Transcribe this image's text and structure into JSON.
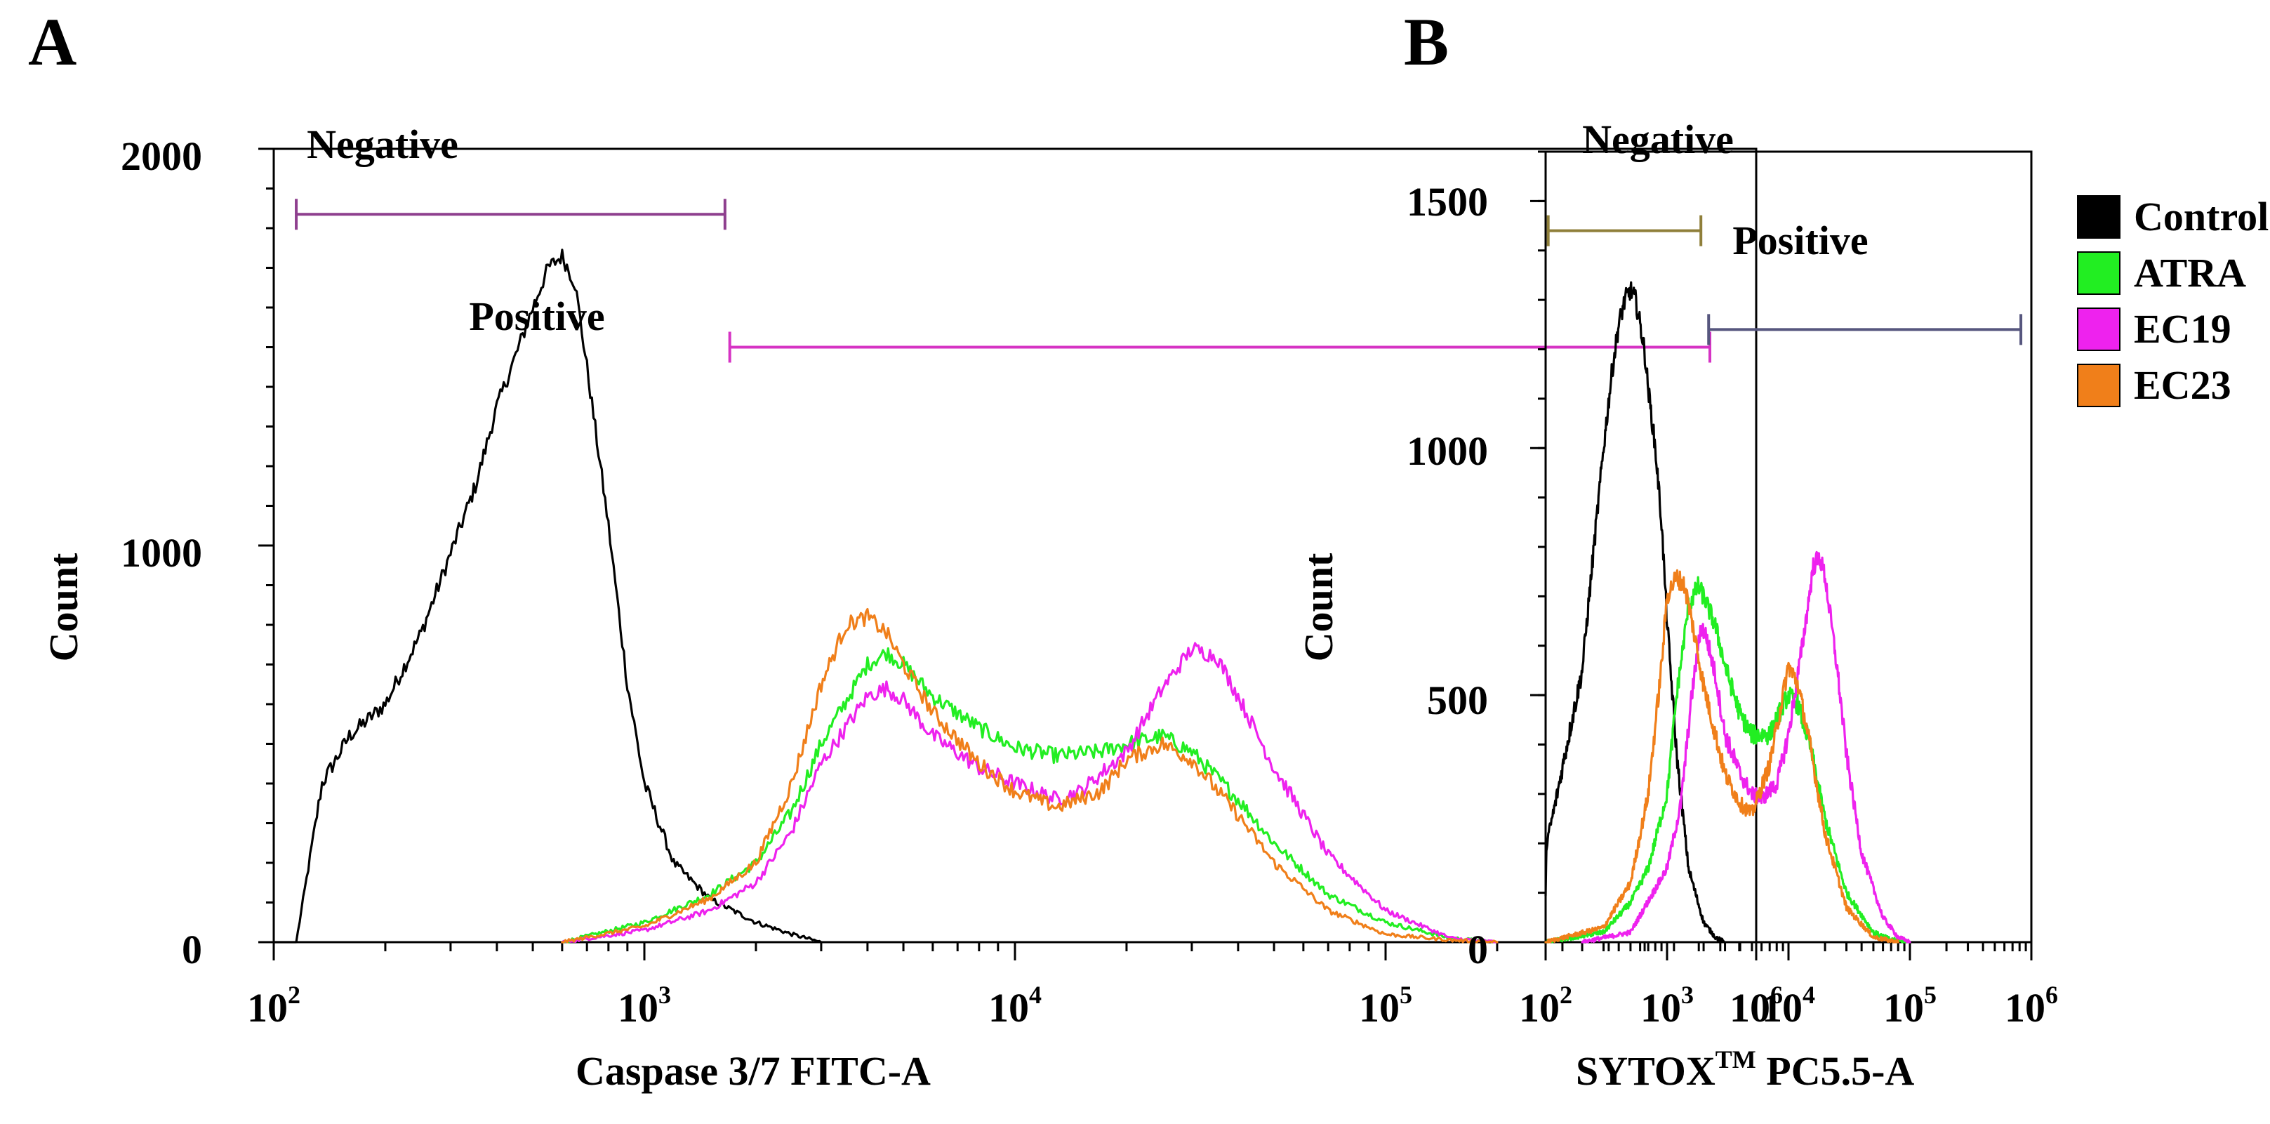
{
  "legend": [
    {
      "label": "Control",
      "color": "#000000"
    },
    {
      "label": "ATRA",
      "color": "#22ee22"
    },
    {
      "label": "EC19",
      "color": "#ee22ee"
    },
    {
      "label": "EC23",
      "color": "#f07f1a"
    }
  ],
  "chart_data": [
    {
      "panel": "A",
      "type": "line",
      "xlabel": "Caspase 3/7 FITC-A",
      "ylabel": "Count",
      "x_scale": "log",
      "xlim": [
        100,
        1000000
      ],
      "ylim": [
        0,
        2000
      ],
      "x_ticks": [
        {
          "base": "10",
          "exp": "2",
          "value": 100
        },
        {
          "base": "10",
          "exp": "3",
          "value": 1000
        },
        {
          "base": "10",
          "exp": "4",
          "value": 10000
        },
        {
          "base": "10",
          "exp": "5",
          "value": 100000
        },
        {
          "base": "10",
          "exp": "6",
          "value": 1000000
        }
      ],
      "y_ticks": [
        {
          "label": "0",
          "value": 0
        },
        {
          "label": "1000",
          "value": 1000
        },
        {
          "label": "2000",
          "value": 2000
        }
      ],
      "gates": [
        {
          "label": "Negative",
          "from": 115,
          "to": 1650,
          "y": 1835,
          "color": "#8e3f8e"
        },
        {
          "label": "Positive",
          "from": 1700,
          "to": 750000,
          "y": 1500,
          "color": "#d633c4"
        }
      ],
      "series": [
        {
          "name": "Control",
          "color": "#000000",
          "x": [
            100,
            115,
            135,
            160,
            200,
            250,
            300,
            350,
            400,
            450,
            500,
            550,
            600,
            650,
            700,
            800,
            900,
            1000,
            1200,
            1500,
            2000,
            2500,
            3000
          ],
          "y": [
            0,
            0,
            400,
            520,
            600,
            780,
            980,
            1150,
            1350,
            1480,
            1600,
            1700,
            1730,
            1660,
            1450,
            1050,
            650,
            400,
            200,
            110,
            50,
            20,
            0
          ]
        },
        {
          "name": "ATRA",
          "color": "#22ee22",
          "x": [
            600,
            1000,
            1500,
            2000,
            2500,
            3000,
            4000,
            4500,
            5000,
            6000,
            8000,
            10000,
            13000,
            17000,
            20000,
            25000,
            30000,
            40000,
            50000,
            70000,
            100000,
            150000,
            200000
          ],
          "y": [
            0,
            50,
            120,
            200,
            330,
            500,
            700,
            730,
            700,
            620,
            540,
            490,
            470,
            480,
            500,
            520,
            480,
            360,
            250,
            120,
            50,
            10,
            0
          ]
        },
        {
          "name": "EC19",
          "color": "#ee22ee",
          "x": [
            600,
            1000,
            1500,
            2000,
            2500,
            3000,
            4000,
            4500,
            5000,
            6000,
            8000,
            10000,
            13000,
            15000,
            20000,
            25000,
            30000,
            35000,
            40000,
            50000,
            70000,
            100000,
            150000,
            200000
          ],
          "y": [
            0,
            30,
            80,
            150,
            280,
            450,
            620,
            640,
            610,
            520,
            440,
            400,
            360,
            380,
            480,
            640,
            740,
            720,
            620,
            440,
            220,
            80,
            10,
            0
          ]
        },
        {
          "name": "EC23",
          "color": "#f07f1a",
          "x": [
            600,
            1000,
            1500,
            2000,
            2500,
            3000,
            3500,
            4000,
            4500,
            5000,
            6000,
            8000,
            10000,
            13000,
            17000,
            20000,
            25000,
            30000,
            40000,
            50000,
            70000,
            100000,
            150000,
            200000
          ],
          "y": [
            0,
            40,
            110,
            200,
            400,
            650,
            800,
            820,
            780,
            700,
            580,
            450,
            380,
            340,
            380,
            460,
            500,
            460,
            320,
            200,
            80,
            20,
            5,
            0
          ]
        }
      ]
    },
    {
      "panel": "B",
      "type": "line",
      "xlabel_base": "SYTOX",
      "xlabel_sup": "TM",
      "xlabel_rest": " PC5.5-A",
      "ylabel": "Count",
      "x_scale": "log",
      "xlim": [
        100,
        1000000
      ],
      "ylim": [
        0,
        1600
      ],
      "x_ticks": [
        {
          "base": "10",
          "exp": "2",
          "value": 100
        },
        {
          "base": "10",
          "exp": "3",
          "value": 1000
        },
        {
          "base": "10",
          "exp": "4",
          "value": 10000
        },
        {
          "base": "10",
          "exp": "5",
          "value": 100000
        },
        {
          "base": "10",
          "exp": "6",
          "value": 1000000
        }
      ],
      "y_ticks": [
        {
          "label": "0",
          "value": 0
        },
        {
          "label": "500",
          "value": 500
        },
        {
          "label": "1000",
          "value": 1000
        },
        {
          "label": "1500",
          "value": 1500
        }
      ],
      "gates": [
        {
          "label": "Negative",
          "from": 105,
          "to": 1900,
          "y": 1440,
          "color": "#8f7f3a"
        },
        {
          "label": "Positive",
          "from": 2200,
          "to": 820000,
          "y": 1240,
          "color": "#56567e"
        }
      ],
      "series": [
        {
          "name": "Control",
          "color": "#000000",
          "x": [
            100,
            102,
            120,
            150,
            200,
            250,
            300,
            350,
            400,
            450,
            500,
            550,
            600,
            650,
            700,
            800,
            900,
            1000,
            1200,
            1500,
            2000,
            2500,
            3000
          ],
          "y": [
            100,
            200,
            280,
            400,
            550,
            800,
            1000,
            1150,
            1250,
            1300,
            1320,
            1300,
            1250,
            1200,
            1120,
            1000,
            850,
            650,
            380,
            150,
            40,
            10,
            0
          ]
        },
        {
          "name": "ATRA",
          "color": "#22ee22",
          "x": [
            100,
            300,
            500,
            700,
            1000,
            1200,
            1500,
            1800,
            2000,
            2500,
            3000,
            4000,
            5000,
            7000,
            9000,
            10000,
            12000,
            15000,
            20000,
            30000,
            50000,
            70000,
            100000
          ],
          "y": [
            0,
            20,
            80,
            150,
            300,
            500,
            680,
            720,
            700,
            640,
            560,
            460,
            420,
            420,
            480,
            500,
            480,
            400,
            250,
            100,
            20,
            5,
            0
          ]
        },
        {
          "name": "EC19",
          "color": "#ee22ee",
          "x": [
            200,
            500,
            1000,
            1300,
            1600,
            1900,
            2100,
            2500,
            3000,
            4000,
            5000,
            6000,
            8000,
            10000,
            13000,
            16000,
            18000,
            20000,
            25000,
            30000,
            40000,
            60000,
            80000,
            100000
          ],
          "y": [
            0,
            20,
            150,
            280,
            500,
            640,
            620,
            540,
            420,
            340,
            300,
            290,
            320,
            420,
            600,
            760,
            780,
            740,
            560,
            380,
            180,
            50,
            10,
            0
          ]
        },
        {
          "name": "EC23",
          "color": "#f07f1a",
          "x": [
            100,
            300,
            500,
            700,
            900,
            1000,
            1200,
            1400,
            1600,
            2000,
            2500,
            3000,
            4000,
            5000,
            7000,
            9000,
            10000,
            12000,
            15000,
            20000,
            30000,
            50000,
            80000
          ],
          "y": [
            0,
            30,
            120,
            300,
            560,
            700,
            740,
            720,
            650,
            520,
            420,
            340,
            280,
            260,
            360,
            500,
            560,
            520,
            400,
            220,
            70,
            10,
            0
          ]
        }
      ]
    }
  ]
}
